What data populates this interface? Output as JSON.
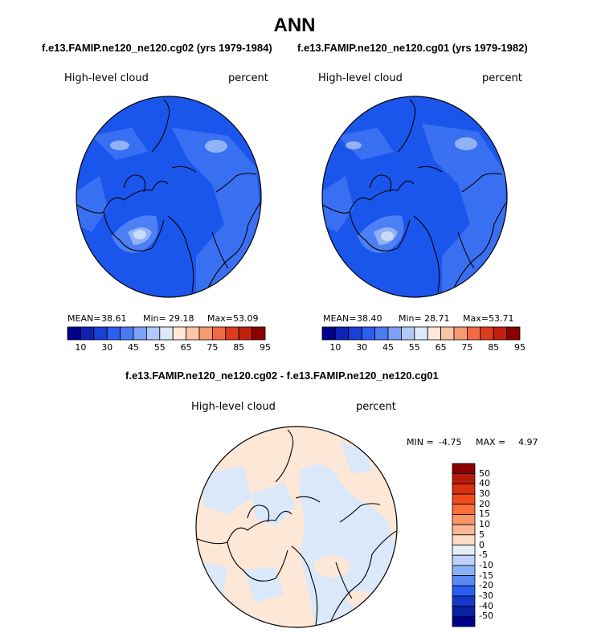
{
  "title": "ANN",
  "subtitles": {
    "left": "f.e13.FAMIP.ne120_ne120.cg02 (yrs 1979-1984)",
    "right": "f.e13.FAMIP.ne120_ne120.cg01 (yrs 1979-1982)",
    "diff": "f.e13.FAMIP.ne120_ne120.cg02 - f.e13.FAMIP.ne120_ne120.cg01"
  },
  "chart_data": [
    {
      "type": "heatmap",
      "projection": "north-polar-stereographic",
      "variable": "High-level cloud",
      "units": "percent",
      "stats": {
        "mean_label": "MEAN=",
        "mean": "38.61",
        "min_label": "Min=",
        "min": "29.18",
        "max_label": "Max=",
        "max": "53.09"
      },
      "colorbar": {
        "orientation": "horizontal",
        "labels": [
          "10",
          "30",
          "45",
          "55",
          "65",
          "75",
          "85",
          "95"
        ],
        "colors": [
          "#00008b",
          "#0d22b3",
          "#1a3fd6",
          "#2b5df0",
          "#4b7af5",
          "#7da1f7",
          "#b1c9fa",
          "#dde9fb",
          "#fde7d7",
          "#fbc6a8",
          "#f79a71",
          "#ef6a44",
          "#de3b1d",
          "#c01f0e",
          "#8b0000"
        ]
      },
      "dominant_colors": [
        "#1a56ec",
        "#3970f2",
        "#91b2f7"
      ]
    },
    {
      "type": "heatmap",
      "projection": "north-polar-stereographic",
      "variable": "High-level cloud",
      "units": "percent",
      "stats": {
        "mean_label": "MEAN=",
        "mean": "38.40",
        "min_label": "Min=",
        "min": "28.71",
        "max_label": "Max=",
        "max": "53.71"
      },
      "colorbar": {
        "orientation": "horizontal",
        "labels": [
          "10",
          "30",
          "45",
          "55",
          "65",
          "75",
          "85",
          "95"
        ],
        "colors": [
          "#00008b",
          "#0d22b3",
          "#1a3fd6",
          "#2b5df0",
          "#4b7af5",
          "#7da1f7",
          "#b1c9fa",
          "#dde9fb",
          "#fde7d7",
          "#fbc6a8",
          "#f79a71",
          "#ef6a44",
          "#de3b1d",
          "#c01f0e",
          "#8b0000"
        ]
      },
      "dominant_colors": [
        "#1a56ec",
        "#3970f2",
        "#91b2f7"
      ]
    },
    {
      "type": "heatmap",
      "projection": "north-polar-stereographic",
      "variable": "High-level cloud",
      "units": "percent",
      "stats": {
        "min_label": "MIN =",
        "min": "-4.75",
        "max_label": "MAX =",
        "max": "4.97"
      },
      "colorbar": {
        "orientation": "vertical",
        "labels": [
          "50",
          "40",
          "30",
          "20",
          "15",
          "10",
          "5",
          "0",
          "-5",
          "-10",
          "-15",
          "-20",
          "-30",
          "-40",
          "-50"
        ],
        "colors": [
          "#8b0000",
          "#b81a0a",
          "#d9310f",
          "#f04c1a",
          "#f87038",
          "#fa9566",
          "#fcb896",
          "#fddcc4",
          "#e7eff9",
          "#bcd3fb",
          "#8cb1f9",
          "#5a88f4",
          "#2b5df0",
          "#1638c7",
          "#0a1fa3",
          "#00008b"
        ]
      },
      "dominant_colors": [
        "#fde7d7",
        "#dbe8fa"
      ]
    }
  ]
}
